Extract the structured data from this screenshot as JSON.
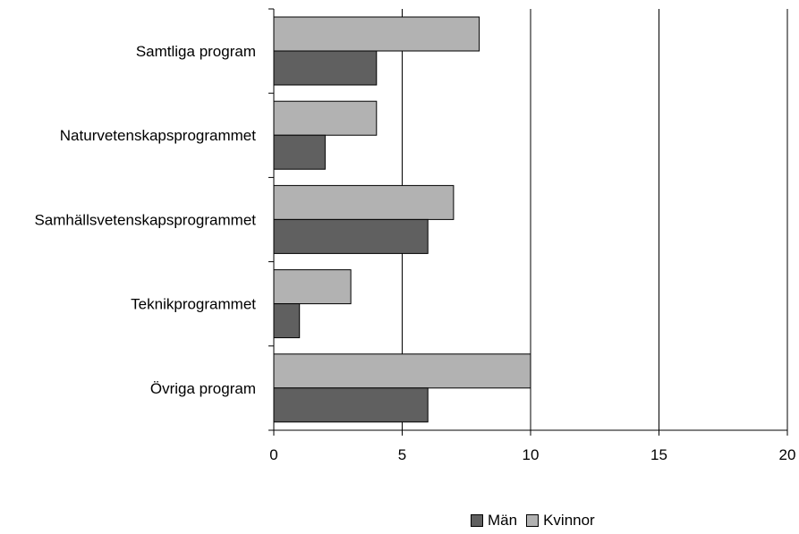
{
  "chart_data": {
    "type": "bar",
    "orientation": "horizontal",
    "categories": [
      "Samtliga program",
      "Naturvetenskapsprogrammet",
      "Samhällsvetenskapsprogrammet",
      "Teknikprogrammet",
      "Övriga program"
    ],
    "series": [
      {
        "name": "Kvinnor",
        "color": "#b2b2b2",
        "values": [
          8,
          4,
          7,
          3,
          10
        ]
      },
      {
        "name": "Män",
        "color": "#606060",
        "values": [
          4,
          2,
          6,
          1,
          6
        ]
      }
    ],
    "xlim": [
      0,
      20
    ],
    "xticks": [
      0,
      5,
      10,
      15,
      20
    ],
    "grid": "vertical",
    "legend": {
      "position": "bottom",
      "order": [
        "Män",
        "Kvinnor"
      ]
    }
  }
}
